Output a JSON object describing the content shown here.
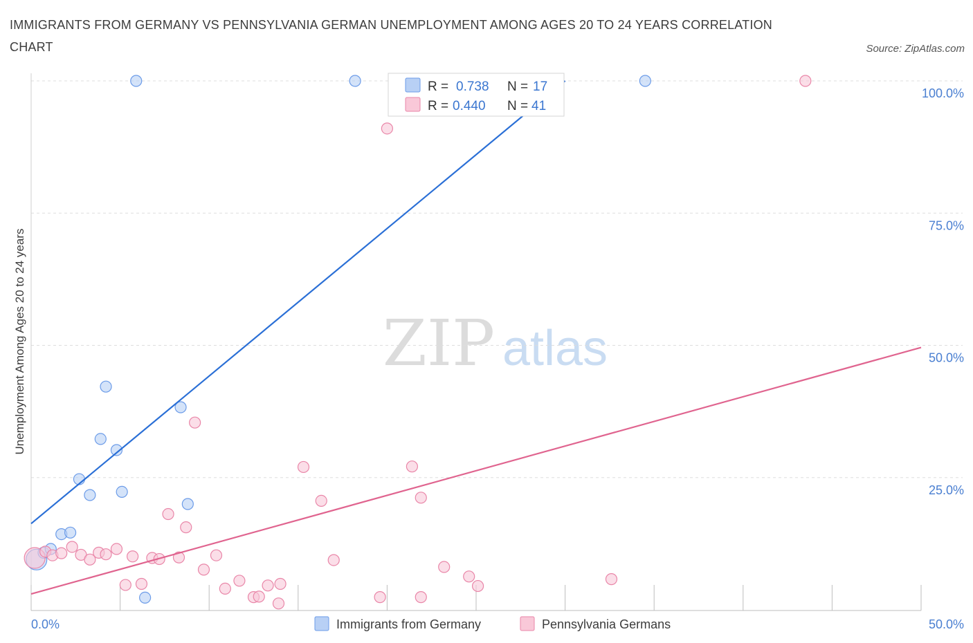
{
  "chart_data": {
    "type": "scatter",
    "title": "IMMIGRANTS FROM GERMANY VS PENNSYLVANIA GERMAN UNEMPLOYMENT AMONG AGES 20 TO 24 YEARS CORRELATION CHART",
    "source": "Source: ZipAtlas.com",
    "xlabel": "",
    "ylabel": "Unemployment Among Ages 20 to 24 years",
    "xlim": [
      0,
      50
    ],
    "ylim": [
      0,
      100
    ],
    "x_tick_labels": [
      "0.0%",
      "50.0%"
    ],
    "y_tick_values": [
      25,
      50,
      75,
      100
    ],
    "y_tick_labels": [
      "25.0%",
      "50.0%",
      "75.0%",
      "100.0%"
    ],
    "grid": true,
    "watermark": {
      "zip": "ZIP",
      "atlas": "atlas"
    },
    "legend_stats": [
      {
        "r_label": "R =",
        "r_value": "0.738",
        "n_label": "N =",
        "n_value": "17",
        "color": "#6b9be8",
        "fill": "#b8d0f5"
      },
      {
        "r_label": "R =",
        "r_value": "0.440",
        "n_label": "N =",
        "n_value": "41",
        "color": "#e986a8",
        "fill": "#f9c8d8"
      }
    ],
    "series": [
      {
        "name": "Immigrants from Germany",
        "color": "#6b9be8",
        "fill": "#b8d0f5",
        "line_color": "#2a6fd6",
        "trend": {
          "x": [
            0,
            30
          ],
          "y": [
            16.3,
            100
          ]
        },
        "points": [
          {
            "x": 0.3,
            "y": 9.5,
            "size": "large"
          },
          {
            "x": 0.7,
            "y": 10.8
          },
          {
            "x": 1.1,
            "y": 11.5
          },
          {
            "x": 1.7,
            "y": 14.3
          },
          {
            "x": 2.2,
            "y": 14.6
          },
          {
            "x": 2.7,
            "y": 24.7
          },
          {
            "x": 3.3,
            "y": 21.7
          },
          {
            "x": 3.9,
            "y": 32.3
          },
          {
            "x": 4.2,
            "y": 42.2
          },
          {
            "x": 4.8,
            "y": 30.2
          },
          {
            "x": 5.1,
            "y": 22.3
          },
          {
            "x": 5.9,
            "y": 100
          },
          {
            "x": 6.4,
            "y": 2.3
          },
          {
            "x": 8.4,
            "y": 38.3
          },
          {
            "x": 8.8,
            "y": 20.0
          },
          {
            "x": 18.2,
            "y": 100
          },
          {
            "x": 34.5,
            "y": 100
          }
        ]
      },
      {
        "name": "Pennsylvania Germans",
        "color": "#e986a8",
        "fill": "#f9c8d8",
        "line_color": "#e0648f",
        "trend": {
          "x": [
            0,
            50
          ],
          "y": [
            3.0,
            49.6
          ]
        },
        "points": [
          {
            "x": 0.2,
            "y": 9.8,
            "size": "large"
          },
          {
            "x": 0.8,
            "y": 11.0
          },
          {
            "x": 1.2,
            "y": 10.3
          },
          {
            "x": 1.7,
            "y": 10.7
          },
          {
            "x": 2.3,
            "y": 11.9
          },
          {
            "x": 2.8,
            "y": 10.4
          },
          {
            "x": 3.3,
            "y": 9.5
          },
          {
            "x": 3.8,
            "y": 10.8
          },
          {
            "x": 4.2,
            "y": 10.5
          },
          {
            "x": 4.8,
            "y": 11.5
          },
          {
            "x": 5.3,
            "y": 4.7
          },
          {
            "x": 5.7,
            "y": 10.1
          },
          {
            "x": 6.2,
            "y": 4.9
          },
          {
            "x": 6.8,
            "y": 9.8
          },
          {
            "x": 7.2,
            "y": 9.6
          },
          {
            "x": 7.7,
            "y": 18.1
          },
          {
            "x": 8.3,
            "y": 9.9
          },
          {
            "x": 8.7,
            "y": 15.6
          },
          {
            "x": 9.2,
            "y": 35.4
          },
          {
            "x": 9.7,
            "y": 7.6
          },
          {
            "x": 10.4,
            "y": 10.3
          },
          {
            "x": 10.9,
            "y": 4.0
          },
          {
            "x": 11.7,
            "y": 5.5
          },
          {
            "x": 12.5,
            "y": 2.4
          },
          {
            "x": 12.8,
            "y": 2.5
          },
          {
            "x": 13.3,
            "y": 4.6
          },
          {
            "x": 13.9,
            "y": 1.2
          },
          {
            "x": 14.0,
            "y": 4.9
          },
          {
            "x": 15.3,
            "y": 27.0
          },
          {
            "x": 16.3,
            "y": 20.6
          },
          {
            "x": 17.0,
            "y": 9.4
          },
          {
            "x": 19.6,
            "y": 2.4
          },
          {
            "x": 20.0,
            "y": 91.0
          },
          {
            "x": 21.4,
            "y": 27.1
          },
          {
            "x": 21.9,
            "y": 2.4
          },
          {
            "x": 21.9,
            "y": 21.2
          },
          {
            "x": 23.2,
            "y": 8.1
          },
          {
            "x": 24.6,
            "y": 6.3
          },
          {
            "x": 25.1,
            "y": 4.5
          },
          {
            "x": 32.6,
            "y": 5.8
          },
          {
            "x": 43.5,
            "y": 100
          }
        ]
      }
    ]
  }
}
